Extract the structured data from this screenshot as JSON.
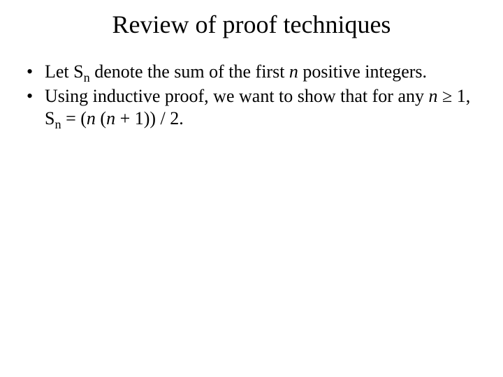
{
  "slide": {
    "background_color": "#ffffff",
    "text_color": "#000000",
    "font_family": "Times New Roman",
    "title": {
      "text": "Review of proof techniques",
      "fontsize_pt": 36,
      "align": "center"
    },
    "body_fontsize_pt": 26,
    "bullet_char": "•",
    "bullets": [
      {
        "segments": [
          {
            "t": "Let S",
            "style": "normal"
          },
          {
            "t": "n",
            "style": "sub"
          },
          {
            "t": " denote the sum of the first ",
            "style": "normal"
          },
          {
            "t": "n",
            "style": "italic"
          },
          {
            "t": " positive integers.",
            "style": "normal"
          }
        ]
      },
      {
        "segments": [
          {
            "t": "Using inductive proof, we want to show that for any ",
            "style": "normal"
          },
          {
            "t": "n",
            "style": "italic"
          },
          {
            "t": " ≥ 1, S",
            "style": "normal"
          },
          {
            "t": "n",
            "style": "sub"
          },
          {
            "t": " = (",
            "style": "normal"
          },
          {
            "t": "n",
            "style": "italic"
          },
          {
            "t": " (",
            "style": "normal"
          },
          {
            "t": "n",
            "style": "italic"
          },
          {
            "t": " + 1)) / 2.",
            "style": "normal"
          }
        ]
      }
    ]
  }
}
